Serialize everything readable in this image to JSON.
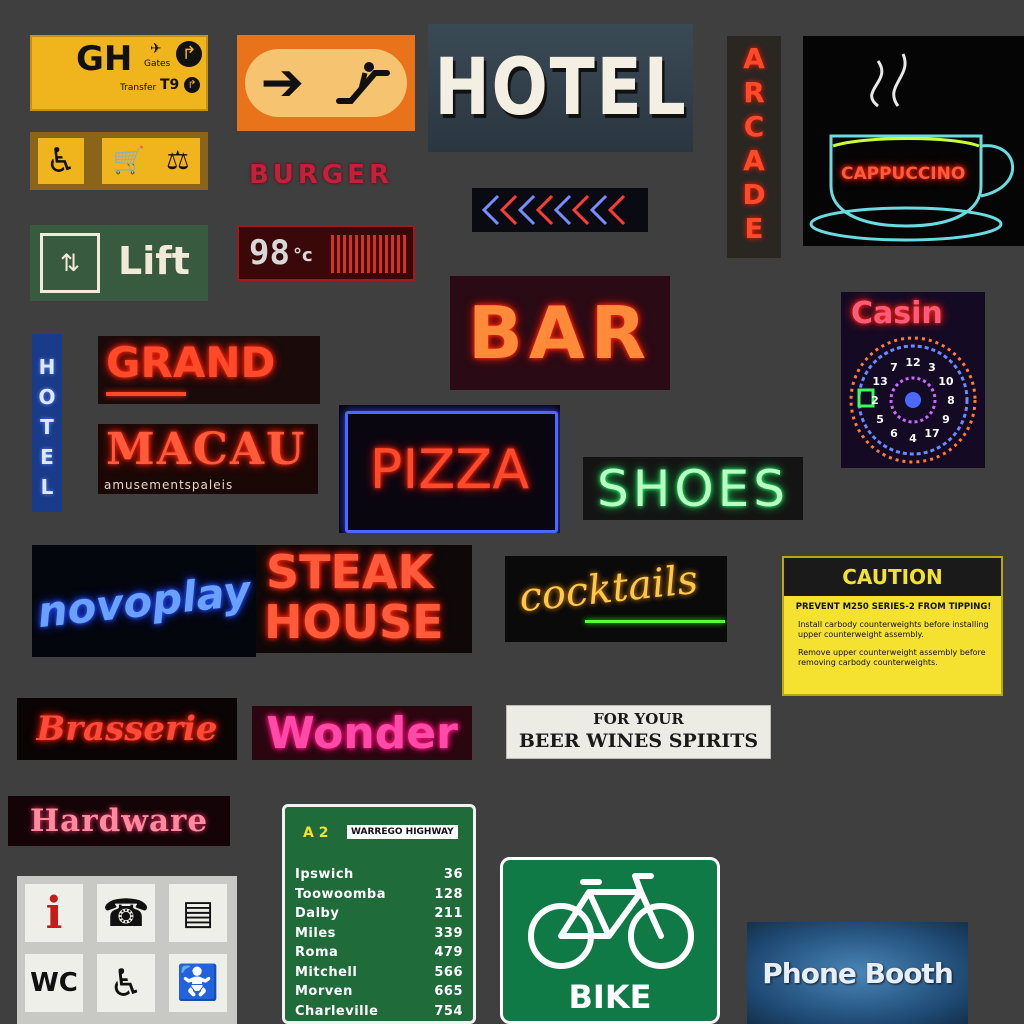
{
  "signs": {
    "gh": {
      "code": "GH",
      "gates": "Gates",
      "transfer": "Transfer",
      "t9": "T9"
    },
    "hotel_top": "HOTEL",
    "arcade": "ARCADE",
    "cappuccino": "CAPPUCCINO",
    "burger": "BURGER",
    "lift": "Lift",
    "temp": "98",
    "temp_unit": "°c",
    "bar": "BAR",
    "casino": "Casin",
    "wheel_numbers": [
      "12",
      "3",
      "10",
      "8",
      "9",
      "17",
      "4",
      "6",
      "5",
      "2",
      "13",
      "7"
    ],
    "hotel_vertical": "HOTEL",
    "grand": "GRAND",
    "macau": "MACAU",
    "macau_sub": "amusementspaleis",
    "pizza": "PIZZA",
    "shoes": "SHOES",
    "novoplay": "novoplay",
    "steak": "STEAK",
    "house": "HOUSE",
    "cocktails": "cocktails",
    "caution": {
      "title": "CAUTION",
      "headline": "PREVENT M250 SERIES-2 FROM TIPPING!",
      "line1": "Install carbody counterweights before installing upper counterweight assembly.",
      "line2": "Remove upper counterweight assembly before removing carbody counterweights."
    },
    "brasserie": "Brasserie",
    "wonder": "Wonder",
    "spirits": {
      "line1": "FOR YOUR",
      "line2": "BEER WINES SPIRITS"
    },
    "hardware": "Hardware",
    "highway": {
      "route": "A 2",
      "name": "WARREGO HIGHWAY",
      "destinations": [
        {
          "place": "Ipswich",
          "km": "36"
        },
        {
          "place": "Toowoomba",
          "km": "128"
        },
        {
          "place": "Dalby",
          "km": "211"
        },
        {
          "place": "Miles",
          "km": "339"
        },
        {
          "place": "Roma",
          "km": "479"
        },
        {
          "place": "Mitchell",
          "km": "566"
        },
        {
          "place": "Morven",
          "km": "665"
        },
        {
          "place": "Charleville",
          "km": "754"
        }
      ]
    },
    "bike_route": "BIKE ROUTE",
    "info_panel": {
      "info": "i",
      "wc": "WC"
    },
    "phone_booth": "Phone Booth"
  },
  "colors": {
    "background": "#3f3f3f",
    "airport_yellow": "#f0b41c",
    "highway_green": "#1f6b3a",
    "bike_green": "#0f7a45",
    "caution_yellow": "#f4e130"
  }
}
